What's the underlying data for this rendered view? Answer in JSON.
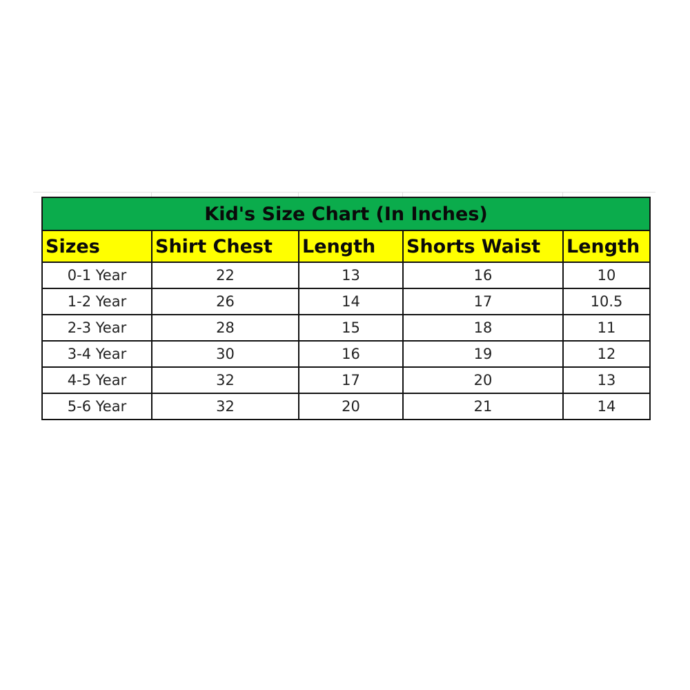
{
  "title": "Kid's Size Chart (In Inches)",
  "colors": {
    "title_bg": "#0bac4c",
    "header_bg": "#ffff00",
    "border": "#111111"
  },
  "headers": [
    "Sizes",
    "Shirt Chest",
    "Length",
    "Shorts Waist",
    "Length"
  ],
  "rows": [
    [
      "0-1 Year",
      "22",
      "13",
      "16",
      "10"
    ],
    [
      "1-2 Year",
      "26",
      "14",
      "17",
      "10.5"
    ],
    [
      "2-3 Year",
      "28",
      "15",
      "18",
      "11"
    ],
    [
      "3-4 Year",
      "30",
      "16",
      "19",
      "12"
    ],
    [
      "4-5 Year",
      "32",
      "17",
      "20",
      "13"
    ],
    [
      "5-6 Year",
      "32",
      "20",
      "21",
      "14"
    ]
  ]
}
